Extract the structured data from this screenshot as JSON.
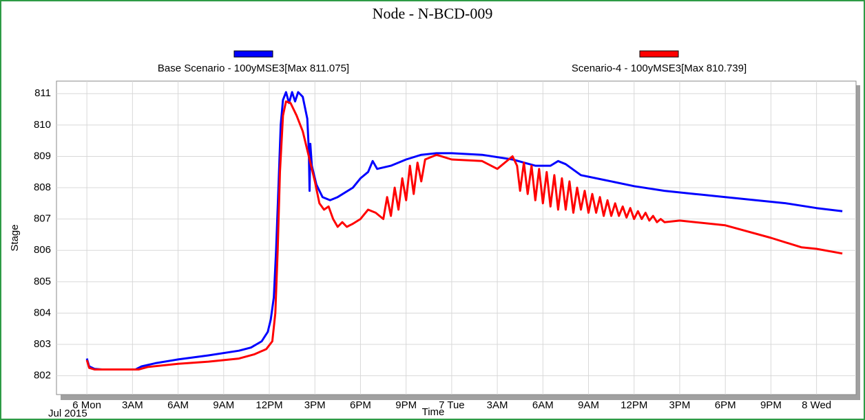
{
  "chart_data": {
    "type": "line",
    "title": "Node - N-BCD-009",
    "xlabel": "Time",
    "ylabel": "Stage",
    "xnote": "Jul 2015",
    "xlim": [
      -2,
      50.6
    ],
    "ylim": [
      801.4,
      811.4
    ],
    "grid": true,
    "xticks": [
      {
        "value": 0,
        "label": "6 Mon"
      },
      {
        "value": 3,
        "label": "3AM"
      },
      {
        "value": 6,
        "label": "6AM"
      },
      {
        "value": 9,
        "label": "9AM"
      },
      {
        "value": 12,
        "label": "12PM"
      },
      {
        "value": 15,
        "label": "3PM"
      },
      {
        "value": 18,
        "label": "6PM"
      },
      {
        "value": 21,
        "label": "9PM"
      },
      {
        "value": 24,
        "label": "7 Tue"
      },
      {
        "value": 27,
        "label": "3AM"
      },
      {
        "value": 30,
        "label": "6AM"
      },
      {
        "value": 33,
        "label": "9AM"
      },
      {
        "value": 36,
        "label": "12PM"
      },
      {
        "value": 39,
        "label": "3PM"
      },
      {
        "value": 42,
        "label": "6PM"
      },
      {
        "value": 45,
        "label": "9PM"
      },
      {
        "value": 48,
        "label": "8 Wed"
      }
    ],
    "yticks": [
      802,
      803,
      804,
      805,
      806,
      807,
      808,
      809,
      810,
      811
    ],
    "series": [
      {
        "name": "Base Scenario - 100yMSE3[Max 811.075]",
        "color": "#0000ff",
        "x": [
          0,
          0.15,
          0.5,
          1,
          3.2,
          3.6,
          4.5,
          6,
          8,
          10,
          10.8,
          11.5,
          11.9,
          12.1,
          12.3,
          12.45,
          12.6,
          12.75,
          12.9,
          13.1,
          13.3,
          13.5,
          13.7,
          13.9,
          14.2,
          14.5,
          14.6,
          14.65,
          14.7,
          14.8,
          15.1,
          15.5,
          16,
          16.5,
          17.5,
          18,
          18.5,
          18.8,
          19.1,
          20,
          21,
          22,
          23,
          24,
          26,
          28,
          29.5,
          30.5,
          31,
          31.5,
          32.5,
          34,
          36,
          38,
          40,
          42,
          44,
          46,
          48,
          49.7
        ],
        "values": [
          802.55,
          802.3,
          802.22,
          802.2,
          802.2,
          802.3,
          802.4,
          802.52,
          802.65,
          802.8,
          802.9,
          803.1,
          803.4,
          803.8,
          804.5,
          806,
          808,
          810,
          810.8,
          811.05,
          810.7,
          811.05,
          810.75,
          811.05,
          810.9,
          810.2,
          809.2,
          807.9,
          809.4,
          808.7,
          808.1,
          807.7,
          807.6,
          807.7,
          808,
          808.3,
          808.5,
          808.85,
          808.6,
          808.7,
          808.9,
          809.05,
          809.1,
          809.1,
          809.05,
          808.9,
          808.7,
          808.7,
          808.85,
          808.75,
          808.4,
          808.25,
          808.05,
          807.9,
          807.8,
          807.7,
          807.6,
          807.5,
          807.35,
          807.25
        ]
      },
      {
        "name": "Scenario-4 - 100yMSE3[Max 810.739]",
        "color": "#ff0000",
        "x": [
          0,
          0.15,
          0.5,
          3.4,
          4,
          6,
          8,
          10,
          11,
          11.8,
          12.2,
          12.4,
          12.55,
          12.7,
          12.9,
          13.1,
          13.4,
          13.8,
          14.2,
          14.6,
          15,
          15.3,
          15.6,
          15.9,
          16.2,
          16.5,
          16.8,
          17.1,
          17.5,
          18,
          18.5,
          19,
          19.5,
          19.75,
          20,
          20.25,
          20.5,
          20.75,
          21,
          21.25,
          21.5,
          21.75,
          22,
          22.25,
          23,
          24,
          26,
          27,
          28,
          28.3,
          28.5,
          28.75,
          29,
          29.25,
          29.5,
          29.75,
          30,
          30.25,
          30.5,
          30.75,
          31,
          31.25,
          31.5,
          31.75,
          32,
          32.25,
          32.5,
          32.75,
          33,
          33.25,
          33.5,
          33.75,
          34,
          34.25,
          34.5,
          34.75,
          35,
          35.25,
          35.5,
          35.75,
          36,
          36.25,
          36.5,
          36.75,
          37,
          37.25,
          37.5,
          37.75,
          38,
          39,
          42,
          45,
          47,
          48,
          49.7
        ],
        "values": [
          802.5,
          802.25,
          802.2,
          802.2,
          802.28,
          802.38,
          802.45,
          802.55,
          802.68,
          802.85,
          803.1,
          804,
          806,
          808.5,
          810.3,
          810.75,
          810.7,
          810.3,
          809.8,
          809,
          808.2,
          807.5,
          807.3,
          807.4,
          807,
          806.75,
          806.9,
          806.75,
          806.85,
          807,
          807.3,
          807.2,
          807.0,
          807.7,
          807.1,
          808.0,
          807.3,
          808.3,
          807.6,
          808.7,
          807.8,
          808.8,
          808.2,
          808.9,
          809.05,
          808.9,
          808.85,
          808.6,
          809,
          808.7,
          807.9,
          808.8,
          807.8,
          808.7,
          807.6,
          808.6,
          807.5,
          808.5,
          807.4,
          808.4,
          807.3,
          808.3,
          807.3,
          808.2,
          807.2,
          808.0,
          807.3,
          807.9,
          807.2,
          807.8,
          807.2,
          807.7,
          807.1,
          807.6,
          807.1,
          807.5,
          807.1,
          807.4,
          807.05,
          807.35,
          807.0,
          807.25,
          807.0,
          807.2,
          806.95,
          807.1,
          806.9,
          807.0,
          806.9,
          806.95,
          806.8,
          806.4,
          806.1,
          806.05,
          805.9
        ]
      }
    ]
  }
}
